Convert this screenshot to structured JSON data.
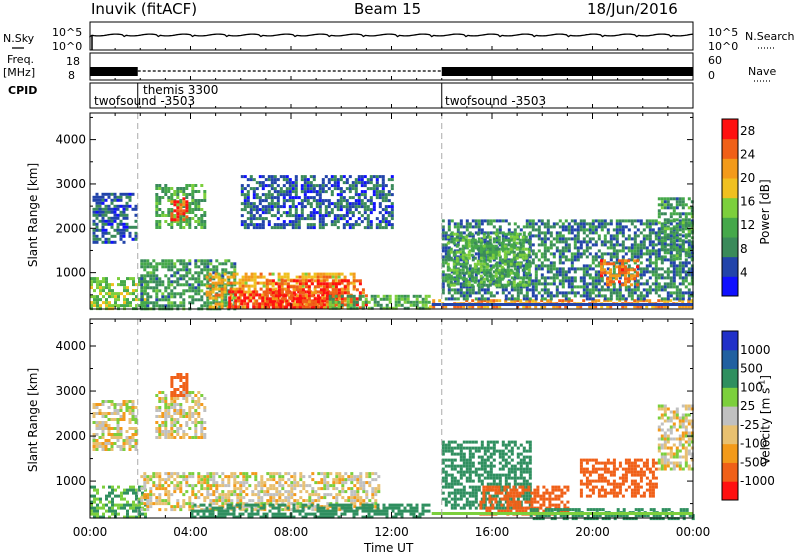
{
  "header": {
    "station": "Inuvik (fitACF)",
    "beam": "Beam 15",
    "date": "18/Jun/2016"
  },
  "strips": {
    "nsky_label": "N.Sky",
    "nsky_ticks": [
      "10^5",
      "10^0"
    ],
    "nsearch_label": "N.Search",
    "nsearch_ticks": [
      "10^5",
      "10^0"
    ],
    "freq_label": "Freq.",
    "freq_unit": "[MHz]",
    "freq_ticks": [
      "18",
      "8"
    ],
    "nave_label": "Nave",
    "nave_ticks": [
      "60",
      "0"
    ],
    "cpid_label": "CPID",
    "cpid_segments": [
      {
        "name": "twofsound -3503",
        "start_h": 0.0
      },
      {
        "name": "themis 3300",
        "start_h": 1.9
      },
      {
        "name": "twofsound -3503",
        "start_h": 14.0
      }
    ]
  },
  "colors": {
    "power_scale": [
      "#1010ff",
      "#2244aa",
      "#3a8a5a",
      "#45a84a",
      "#7ccf3c",
      "#f0c020",
      "#f39a1a",
      "#f06018",
      "#ff1010"
    ],
    "velocity_scale": [
      "#ff1010",
      "#f06018",
      "#f39a1a",
      "#e8c070",
      "#c0c0c0",
      "#7ccf3c",
      "#2f8f5f",
      "#2060a0",
      "#2030c8"
    ]
  },
  "chart_data": [
    {
      "type": "heatmap",
      "name": "power",
      "xlabel": "",
      "ylabel": "Slant Range [km]",
      "x_ticks": [
        "00:00",
        "04:00",
        "08:00",
        "12:00",
        "16:00",
        "20:00",
        "00:00"
      ],
      "xlim": [
        0,
        24
      ],
      "y_ticks": [
        1000,
        2000,
        3000,
        4000
      ],
      "ylim": [
        180,
        4600
      ],
      "colorbar_label": "Power [dB]",
      "colorbar_ticks": [
        4,
        8,
        12,
        16,
        20,
        24,
        28
      ],
      "clim": [
        0,
        30
      ],
      "vertical_markers_h": [
        1.9,
        14.0
      ],
      "regions": [
        {
          "t0": 0.0,
          "t1": 2.2,
          "r0": 200,
          "r1": 900,
          "level": 14
        },
        {
          "t0": 0.1,
          "t1": 1.8,
          "r0": 1700,
          "r1": 2800,
          "level": 6
        },
        {
          "t0": 2.6,
          "t1": 4.6,
          "r0": 2000,
          "r1": 3000,
          "level": 12
        },
        {
          "t0": 3.2,
          "t1": 3.9,
          "r0": 2200,
          "r1": 2700,
          "level": 26
        },
        {
          "t0": 2.0,
          "t1": 5.8,
          "r0": 200,
          "r1": 1300,
          "level": 10
        },
        {
          "t0": 4.6,
          "t1": 10.5,
          "r0": 200,
          "r1": 1000,
          "level": 20
        },
        {
          "t0": 5.5,
          "t1": 9.8,
          "r0": 200,
          "r1": 600,
          "level": 28
        },
        {
          "t0": 7.0,
          "t1": 11.0,
          "r0": 200,
          "r1": 850,
          "level": 26
        },
        {
          "t0": 9.5,
          "t1": 13.5,
          "r0": 200,
          "r1": 500,
          "level": 12
        },
        {
          "t0": 13.5,
          "t1": 24.0,
          "r0": 200,
          "r1": 400,
          "level": 22
        },
        {
          "t0": 14.0,
          "t1": 24.0,
          "r0": 400,
          "r1": 2200,
          "level": 8
        },
        {
          "t0": 14.2,
          "t1": 17.5,
          "r0": 700,
          "r1": 1900,
          "level": 12
        },
        {
          "t0": 20.3,
          "t1": 21.8,
          "r0": 700,
          "r1": 1300,
          "level": 24
        },
        {
          "t0": 22.6,
          "t1": 24.0,
          "r0": 1300,
          "r1": 2700,
          "level": 10
        },
        {
          "t0": 6.0,
          "t1": 12.0,
          "r0": 2000,
          "r1": 3200,
          "level": 6
        }
      ]
    },
    {
      "type": "heatmap",
      "name": "velocity",
      "xlabel": "Time UT",
      "ylabel": "Slant Range [km]",
      "x_ticks": [
        "00:00",
        "04:00",
        "08:00",
        "12:00",
        "16:00",
        "20:00",
        "00:00"
      ],
      "xlim": [
        0,
        24
      ],
      "y_ticks": [
        1000,
        2000,
        3000,
        4000
      ],
      "ylim": [
        180,
        4600
      ],
      "colorbar_label": "Velocity [m s-1]",
      "colorbar_ticks": [
        "1000",
        "500",
        "100",
        "25",
        "-25",
        "-100",
        "-500",
        "-1000"
      ],
      "vertical_markers_h": [
        1.9,
        14.0
      ],
      "regions": [
        {
          "t0": 0.0,
          "t1": 2.2,
          "r0": 200,
          "r1": 900,
          "level": 100
        },
        {
          "t0": 0.1,
          "t1": 1.8,
          "r0": 1700,
          "r1": 2800,
          "level": 0
        },
        {
          "t0": 2.6,
          "t1": 4.6,
          "r0": 2000,
          "r1": 3000,
          "level": 0
        },
        {
          "t0": 3.2,
          "t1": 3.9,
          "r0": 2900,
          "r1": 3400,
          "level": -300
        },
        {
          "t0": 2.0,
          "t1": 11.5,
          "r0": 400,
          "r1": 1200,
          "level": 0
        },
        {
          "t0": 4.0,
          "t1": 13.5,
          "r0": 200,
          "r1": 500,
          "level": 150
        },
        {
          "t0": 14.0,
          "t1": 17.5,
          "r0": 400,
          "r1": 1900,
          "level": 400
        },
        {
          "t0": 15.5,
          "t1": 19.0,
          "r0": 300,
          "r1": 900,
          "level": -300
        },
        {
          "t0": 17.5,
          "t1": 24.0,
          "r0": 200,
          "r1": 400,
          "level": 150
        },
        {
          "t0": 19.5,
          "t1": 22.5,
          "r0": 700,
          "r1": 1500,
          "level": -400
        },
        {
          "t0": 22.6,
          "t1": 24.0,
          "r0": 1300,
          "r1": 2700,
          "level": 0
        }
      ]
    }
  ]
}
